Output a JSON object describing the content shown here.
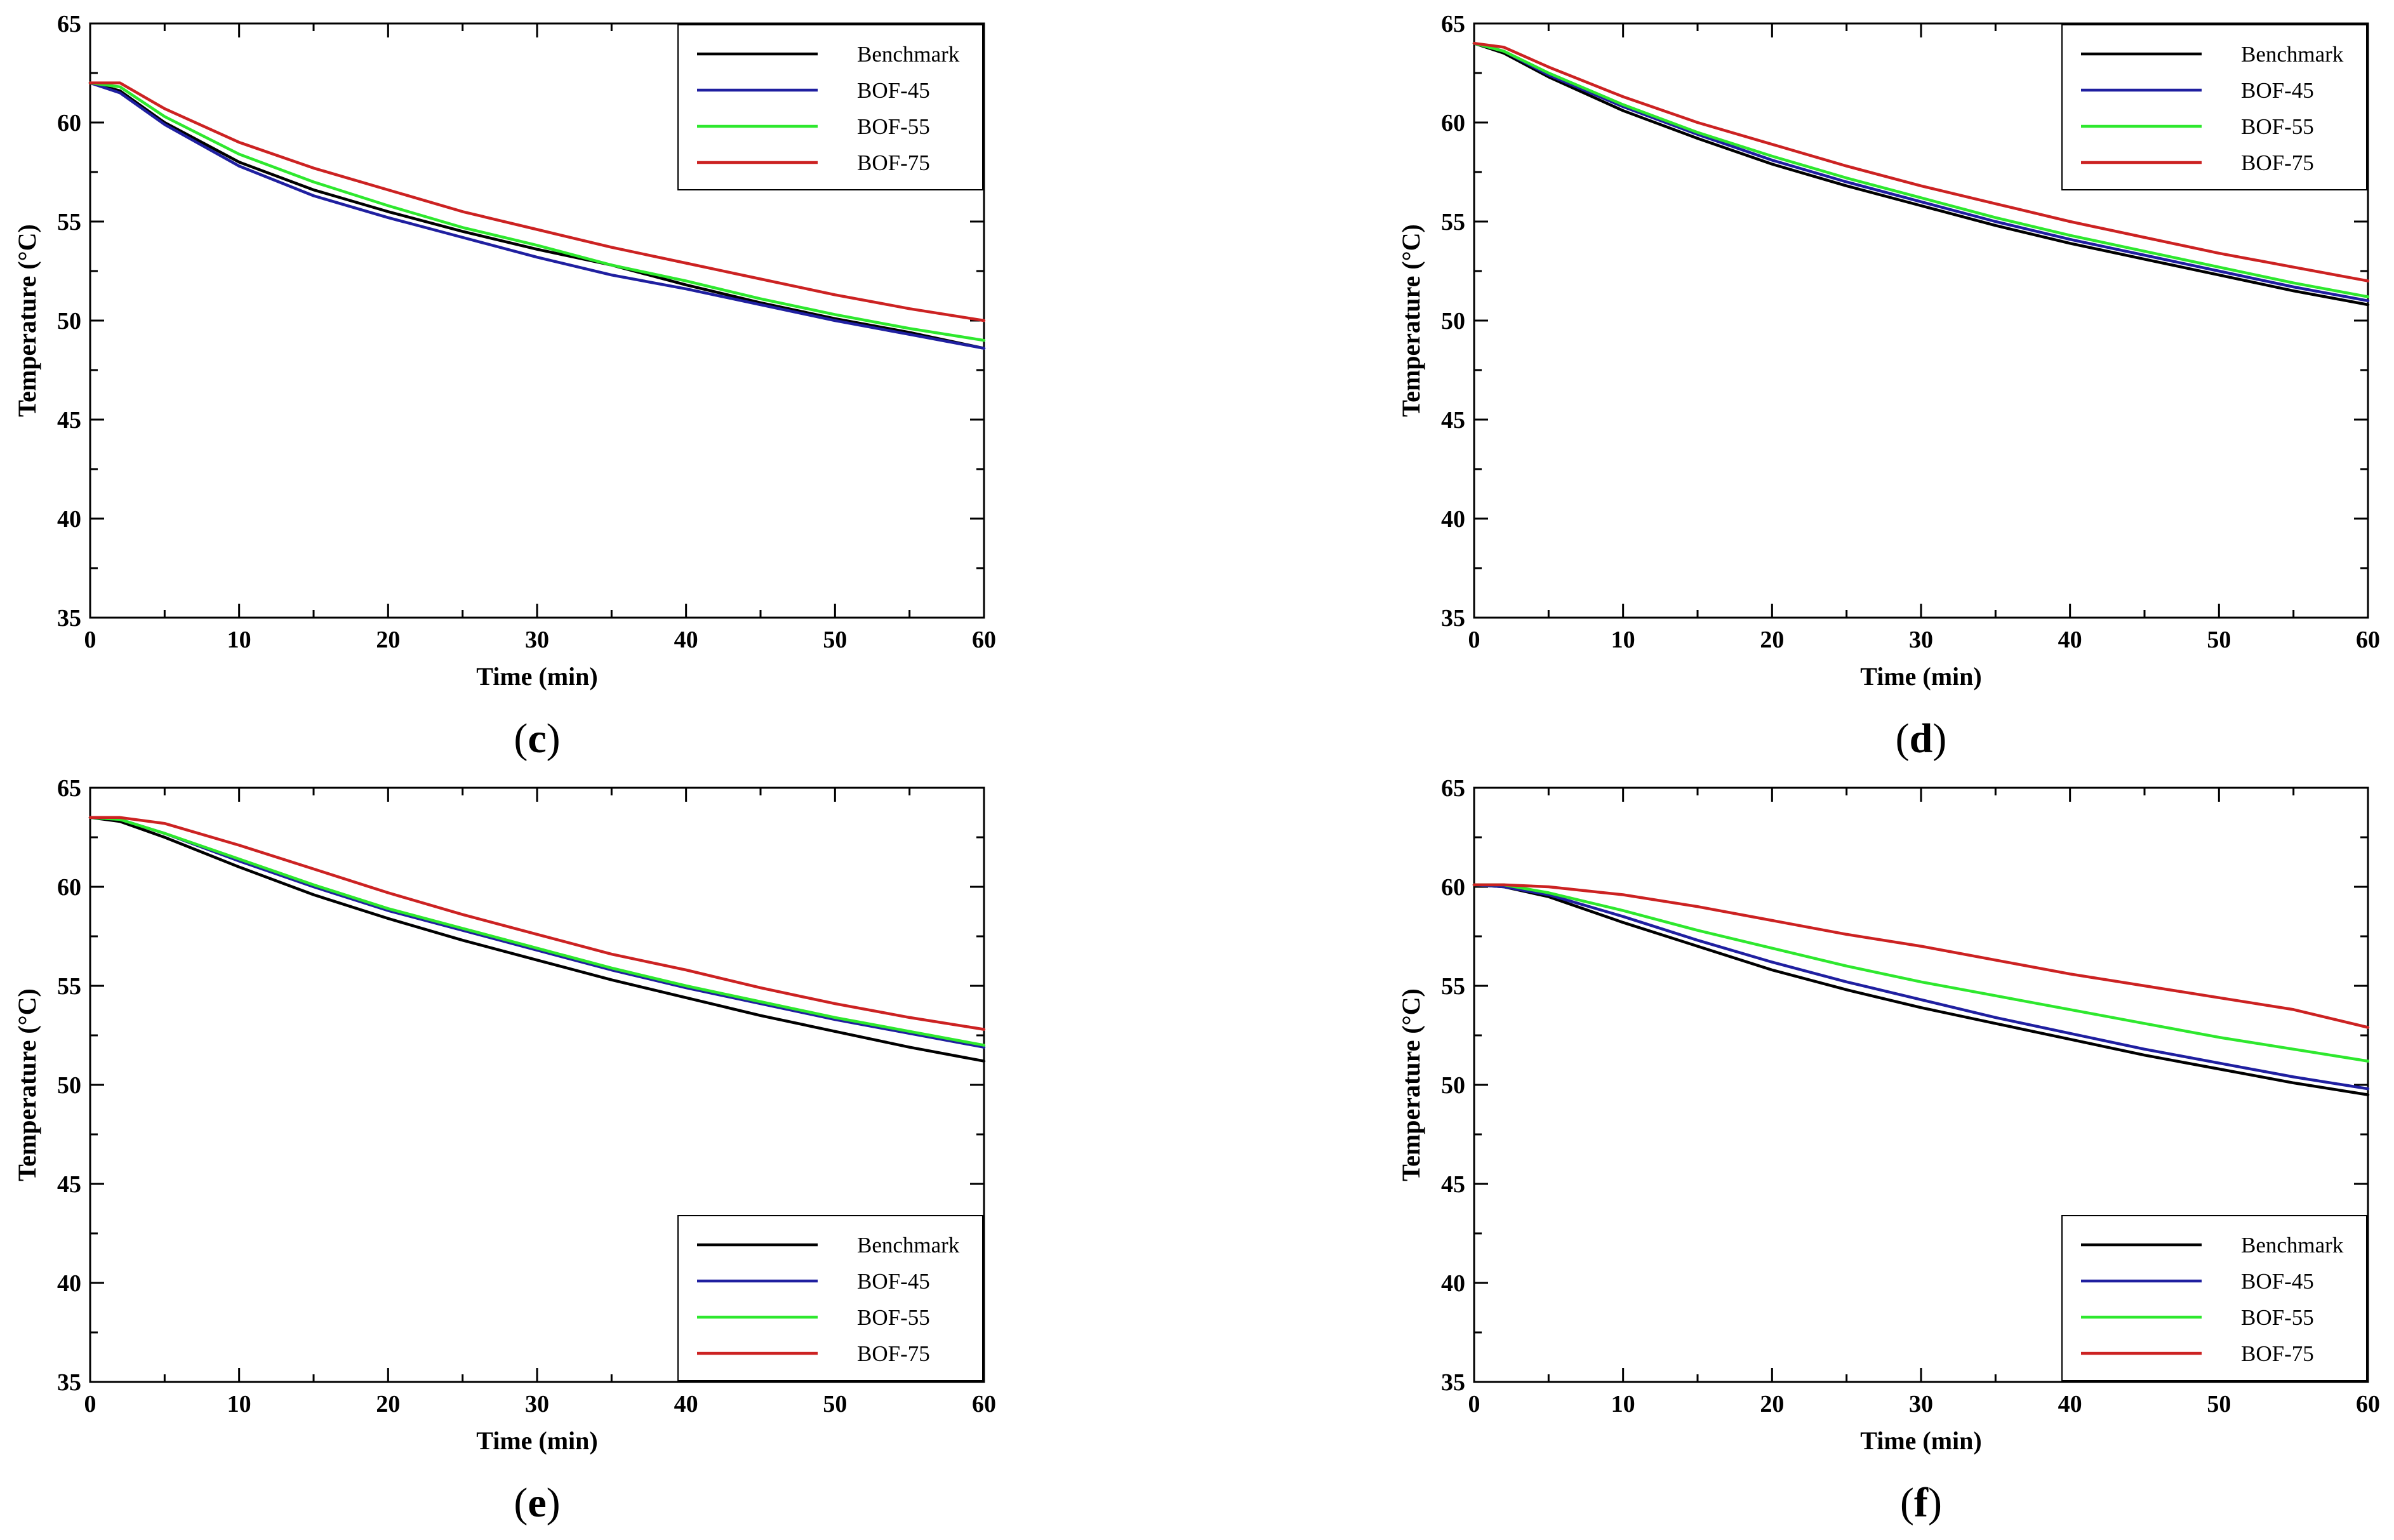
{
  "colors": {
    "Benchmark": "#000000",
    "BOF-45": "#1f1fa0",
    "BOF-55": "#2ee82e",
    "BOF-75": "#cc2222"
  },
  "chart_data": [
    {
      "id": "c",
      "type": "line",
      "caption": {
        "open": "(",
        "letter": "c",
        "close": ")"
      },
      "xlabel": "Time (min)",
      "ylabel": "Temperature (°C)",
      "xlim": [
        0,
        60
      ],
      "ylim": [
        35,
        65
      ],
      "xticks": [
        0,
        10,
        20,
        30,
        40,
        50,
        60
      ],
      "yticks": [
        35,
        40,
        45,
        50,
        55,
        60,
        65
      ],
      "legend_position": "top-right",
      "x": [
        0,
        2,
        5,
        10,
        15,
        20,
        25,
        30,
        35,
        40,
        45,
        50,
        55,
        60
      ],
      "series": [
        {
          "name": "Benchmark",
          "values": [
            62.0,
            61.6,
            60.0,
            58.0,
            56.6,
            55.5,
            54.5,
            53.6,
            52.8,
            51.8,
            50.9,
            50.1,
            49.4,
            48.6
          ]
        },
        {
          "name": "BOF-45",
          "values": [
            62.0,
            61.5,
            59.9,
            57.8,
            56.3,
            55.2,
            54.2,
            53.2,
            52.3,
            51.6,
            50.8,
            50.0,
            49.3,
            48.6
          ]
        },
        {
          "name": "BOF-55",
          "values": [
            62.0,
            61.8,
            60.3,
            58.4,
            57.0,
            55.8,
            54.7,
            53.8,
            52.8,
            52.0,
            51.1,
            50.3,
            49.6,
            49.0
          ]
        },
        {
          "name": "BOF-75",
          "values": [
            62.0,
            62.0,
            60.7,
            59.0,
            57.7,
            56.6,
            55.5,
            54.6,
            53.7,
            52.9,
            52.1,
            51.3,
            50.6,
            50.0
          ]
        }
      ]
    },
    {
      "id": "d",
      "type": "line",
      "caption": {
        "open": "(",
        "letter": "d",
        "close": ")"
      },
      "xlabel": "Time (min)",
      "ylabel": "Temperature (°C)",
      "xlim": [
        0,
        60
      ],
      "ylim": [
        35,
        65
      ],
      "xticks": [
        0,
        10,
        20,
        30,
        40,
        50,
        60
      ],
      "yticks": [
        35,
        40,
        45,
        50,
        55,
        60,
        65
      ],
      "legend_position": "top-right",
      "x": [
        0,
        2,
        5,
        10,
        15,
        20,
        25,
        30,
        35,
        40,
        45,
        50,
        55,
        60
      ],
      "series": [
        {
          "name": "Benchmark",
          "values": [
            64.0,
            63.5,
            62.3,
            60.6,
            59.2,
            57.9,
            56.8,
            55.8,
            54.8,
            53.9,
            53.1,
            52.3,
            51.5,
            50.8
          ]
        },
        {
          "name": "BOF-45",
          "values": [
            64.0,
            63.6,
            62.4,
            60.8,
            59.4,
            58.1,
            57.0,
            56.0,
            55.0,
            54.1,
            53.3,
            52.5,
            51.7,
            51.0
          ]
        },
        {
          "name": "BOF-55",
          "values": [
            64.0,
            63.6,
            62.5,
            60.9,
            59.5,
            58.3,
            57.2,
            56.2,
            55.2,
            54.3,
            53.5,
            52.7,
            51.9,
            51.2
          ]
        },
        {
          "name": "BOF-75",
          "values": [
            64.0,
            63.8,
            62.8,
            61.3,
            60.0,
            58.9,
            57.8,
            56.8,
            55.9,
            55.0,
            54.2,
            53.4,
            52.7,
            52.0
          ]
        }
      ]
    },
    {
      "id": "e",
      "type": "line",
      "caption": {
        "open": "(",
        "letter": "e",
        "close": ")"
      },
      "xlabel": "Time (min)",
      "ylabel": "Temperature (°C)",
      "xlim": [
        0,
        60
      ],
      "ylim": [
        35,
        65
      ],
      "xticks": [
        0,
        10,
        20,
        30,
        40,
        50,
        60
      ],
      "yticks": [
        35,
        40,
        45,
        50,
        55,
        60,
        65
      ],
      "legend_position": "bottom-right",
      "x": [
        0,
        2,
        5,
        10,
        15,
        20,
        25,
        30,
        35,
        40,
        45,
        50,
        55,
        60
      ],
      "series": [
        {
          "name": "Benchmark",
          "values": [
            63.5,
            63.3,
            62.5,
            61.0,
            59.6,
            58.4,
            57.3,
            56.3,
            55.3,
            54.4,
            53.5,
            52.7,
            51.9,
            51.2
          ]
        },
        {
          "name": "BOF-45",
          "values": [
            63.5,
            63.4,
            62.7,
            61.3,
            60.0,
            58.8,
            57.8,
            56.8,
            55.8,
            54.9,
            54.1,
            53.3,
            52.6,
            51.9
          ]
        },
        {
          "name": "BOF-55",
          "values": [
            63.5,
            63.4,
            62.7,
            61.4,
            60.1,
            58.9,
            57.9,
            56.9,
            55.9,
            55.0,
            54.2,
            53.4,
            52.7,
            52.0
          ]
        },
        {
          "name": "BOF-75",
          "values": [
            63.5,
            63.5,
            63.2,
            62.1,
            60.9,
            59.7,
            58.6,
            57.6,
            56.6,
            55.8,
            54.9,
            54.1,
            53.4,
            52.8
          ]
        }
      ]
    },
    {
      "id": "f",
      "type": "line",
      "caption": {
        "open": "(",
        "letter": "f",
        "close": ")"
      },
      "xlabel": "Time (min)",
      "ylabel": "Temperature (°C)",
      "xlim": [
        0,
        60
      ],
      "ylim": [
        35,
        65
      ],
      "xticks": [
        0,
        10,
        20,
        30,
        40,
        50,
        60
      ],
      "yticks": [
        35,
        40,
        45,
        50,
        55,
        60,
        65
      ],
      "legend_position": "bottom-right",
      "x": [
        0,
        2,
        5,
        10,
        15,
        20,
        25,
        30,
        35,
        40,
        45,
        50,
        55,
        60
      ],
      "series": [
        {
          "name": "Benchmark",
          "values": [
            60.1,
            60.0,
            59.5,
            58.2,
            57.0,
            55.8,
            54.8,
            53.9,
            53.1,
            52.3,
            51.5,
            50.8,
            50.1,
            49.5
          ]
        },
        {
          "name": "BOF-45",
          "values": [
            60.1,
            60.0,
            59.6,
            58.5,
            57.3,
            56.2,
            55.2,
            54.3,
            53.4,
            52.6,
            51.8,
            51.1,
            50.4,
            49.8
          ]
        },
        {
          "name": "BOF-55",
          "values": [
            60.1,
            60.1,
            59.7,
            58.8,
            57.8,
            56.9,
            56.0,
            55.2,
            54.5,
            53.8,
            53.1,
            52.4,
            51.8,
            51.2
          ]
        },
        {
          "name": "BOF-75",
          "values": [
            60.1,
            60.1,
            60.0,
            59.6,
            59.0,
            58.3,
            57.6,
            57.0,
            56.3,
            55.6,
            55.0,
            54.4,
            53.8,
            52.9
          ]
        }
      ]
    }
  ]
}
